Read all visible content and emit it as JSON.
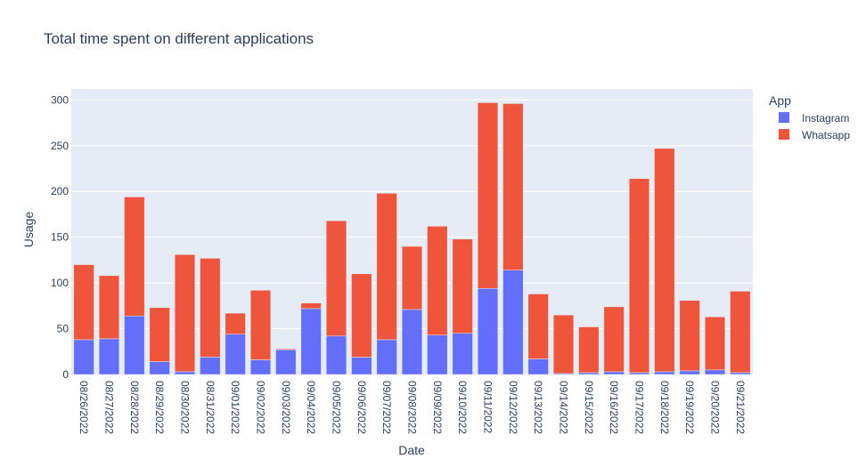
{
  "chart_data": {
    "type": "bar",
    "barmode": "stack",
    "title": "Total time spent on different applications",
    "xlabel": "Date",
    "ylabel": "Usage",
    "ylim": [
      0,
      312
    ],
    "yticks": [
      0,
      50,
      100,
      150,
      200,
      250,
      300
    ],
    "legend_title": "App",
    "legend_position": "right",
    "grid": true,
    "categories": [
      "08/26/2022",
      "08/27/2022",
      "08/28/2022",
      "08/29/2022",
      "08/30/2022",
      "08/31/2022",
      "09/01/2022",
      "09/02/2022",
      "09/03/2022",
      "09/04/2022",
      "09/05/2022",
      "09/06/2022",
      "09/07/2022",
      "09/08/2022",
      "09/09/2022",
      "09/10/2022",
      "09/11/2022",
      "09/12/2022",
      "09/13/2022",
      "09/14/2022",
      "09/15/2022",
      "09/16/2022",
      "09/17/2022",
      "09/18/2022",
      "09/19/2022",
      "09/20/2022",
      "09/21/2022"
    ],
    "series": [
      {
        "name": "Instagram",
        "color": "#636efa",
        "values": [
          38,
          39,
          64,
          14,
          3,
          19,
          44,
          16,
          27,
          72,
          42,
          19,
          38,
          71,
          43,
          45,
          94,
          114,
          17,
          1,
          2,
          3,
          2,
          3,
          4,
          5,
          2
        ]
      },
      {
        "name": "Whatsapp",
        "color": "#ef553b",
        "values": [
          82,
          69,
          130,
          59,
          128,
          108,
          23,
          76,
          1,
          6,
          126,
          91,
          160,
          69,
          119,
          103,
          203,
          182,
          71,
          64,
          50,
          71,
          212,
          244,
          77,
          58,
          89
        ]
      }
    ]
  },
  "colors": {
    "plot_background": "#e5ecf6",
    "gridline": "#ffffff",
    "text": "#2a3f5f"
  }
}
